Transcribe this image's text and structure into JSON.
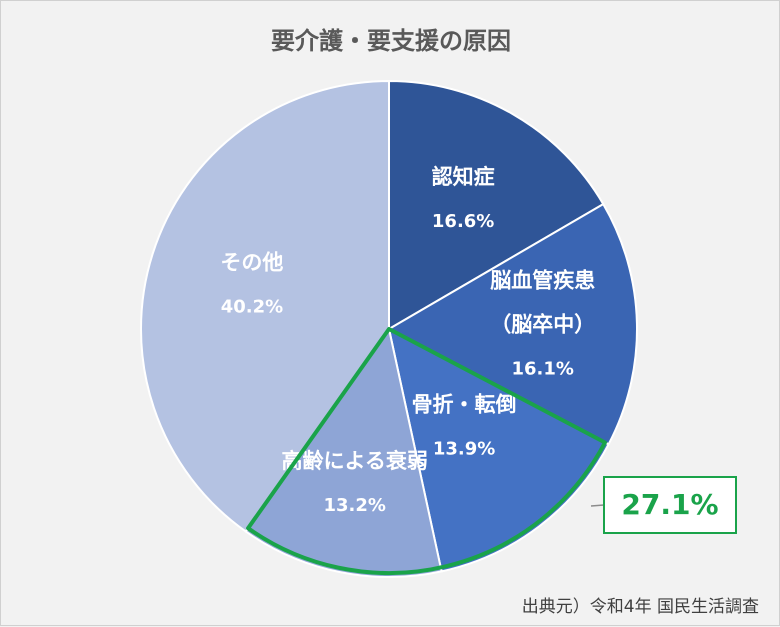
{
  "chart_data": {
    "type": "pie",
    "title": "要介護・要支援の原因",
    "slices": [
      {
        "name": "認知症",
        "label": "16.6%",
        "value": 16.6,
        "color": "#2f5597"
      },
      {
        "name": "脳血管疾患",
        "name2": "（脳卒中）",
        "label": "16.1%",
        "value": 16.1,
        "color": "#3a65b3"
      },
      {
        "name": "骨折・転倒",
        "label": "13.9%",
        "value": 13.9,
        "color": "#4472c4"
      },
      {
        "name": "高齢による衰弱",
        "label": "13.2%",
        "value": 13.2,
        "color": "#8ea5d6"
      },
      {
        "name": "その他",
        "label": "40.2%",
        "value": 40.2,
        "color": "#b4c2e2"
      }
    ],
    "highlight": {
      "label": "27.1%",
      "slices": [
        2,
        3
      ],
      "color": "#1aa34a"
    }
  },
  "source": "出典元）令和4年 国民生活調査"
}
